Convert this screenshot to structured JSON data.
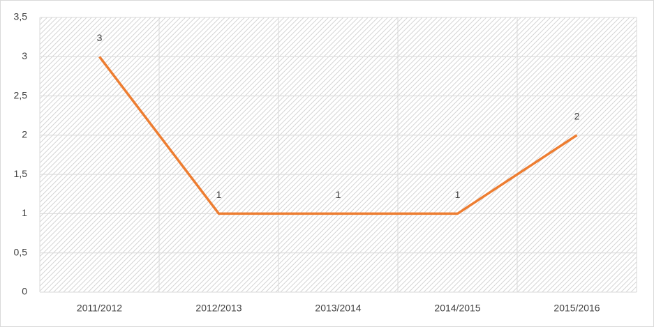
{
  "chart_data": {
    "type": "line",
    "categories": [
      "2011/2012",
      "2012/2013",
      "2013/2014",
      "2014/2015",
      "2015/2016"
    ],
    "values": [
      3,
      1,
      1,
      1,
      2
    ],
    "color": "#ed7d31",
    "ylim": [
      0,
      3.5
    ],
    "yticks": [
      0,
      {
        "value": 0.5,
        "label": "0,5"
      },
      1,
      {
        "value": 1.5,
        "label": "1,5"
      },
      2,
      {
        "value": 2.5,
        "label": "2,5"
      },
      3,
      {
        "value": 3.5,
        "label": "3,5"
      }
    ],
    "grid": true
  }
}
